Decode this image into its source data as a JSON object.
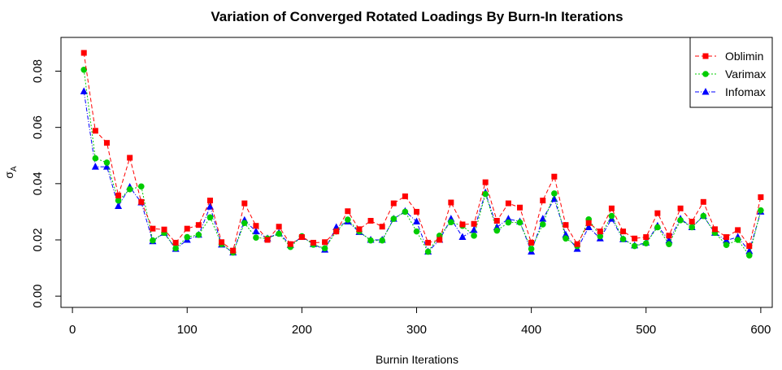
{
  "chart_data": {
    "type": "line",
    "title": "Variation of Converged Rotated Loadings By Burn-In Iterations",
    "xlabel": "Burnin Iterations",
    "ylabel": "σ",
    "ylabel_sub": "A",
    "xlim": [
      -10,
      610
    ],
    "ylim": [
      -0.004,
      0.092
    ],
    "x_ticks": [
      0,
      100,
      200,
      300,
      400,
      500,
      600
    ],
    "y_ticks": [
      0.0,
      0.02,
      0.04,
      0.06,
      0.08
    ],
    "y_tick_labels": [
      "0.00",
      "0.02",
      "0.04",
      "0.06",
      "0.08"
    ],
    "grid": false,
    "legend_position": "top-right",
    "x": [
      10,
      20,
      30,
      40,
      50,
      60,
      70,
      80,
      90,
      100,
      110,
      120,
      130,
      140,
      150,
      160,
      170,
      180,
      190,
      200,
      210,
      220,
      230,
      240,
      250,
      260,
      270,
      280,
      290,
      300,
      310,
      320,
      330,
      340,
      350,
      360,
      370,
      380,
      390,
      400,
      410,
      420,
      430,
      440,
      450,
      460,
      470,
      480,
      490,
      500,
      510,
      520,
      530,
      540,
      550,
      560,
      570,
      580,
      590,
      600
    ],
    "series": [
      {
        "name": "Oblimin",
        "color": "#ff0000",
        "marker": "square",
        "dash": "5,3",
        "values": [
          0.0865,
          0.0588,
          0.0545,
          0.0358,
          0.0492,
          0.0335,
          0.024,
          0.0237,
          0.019,
          0.024,
          0.0253,
          0.034,
          0.0192,
          0.0162,
          0.033,
          0.025,
          0.02,
          0.0247,
          0.0185,
          0.021,
          0.019,
          0.0192,
          0.023,
          0.0302,
          0.0238,
          0.0268,
          0.0247,
          0.033,
          0.0355,
          0.03,
          0.019,
          0.02,
          0.0333,
          0.0255,
          0.0257,
          0.0405,
          0.0268,
          0.033,
          0.0315,
          0.019,
          0.034,
          0.0425,
          0.0253,
          0.0185,
          0.026,
          0.023,
          0.0312,
          0.023,
          0.0205,
          0.021,
          0.0295,
          0.0215,
          0.0312,
          0.0265,
          0.0335,
          0.0238,
          0.021,
          0.0235,
          0.0178,
          0.0352
        ]
      },
      {
        "name": "Varimax",
        "color": "#00cc00",
        "marker": "circle",
        "dash": "2,2",
        "values": [
          0.0805,
          0.049,
          0.0475,
          0.034,
          0.038,
          0.039,
          0.0198,
          0.0225,
          0.017,
          0.021,
          0.0218,
          0.028,
          0.0185,
          0.0155,
          0.026,
          0.0208,
          0.0205,
          0.0222,
          0.0175,
          0.0213,
          0.0183,
          0.017,
          0.023,
          0.0272,
          0.023,
          0.0198,
          0.0198,
          0.0275,
          0.03,
          0.023,
          0.0158,
          0.0215,
          0.0263,
          0.025,
          0.0215,
          0.0363,
          0.0233,
          0.0262,
          0.0262,
          0.0168,
          0.0255,
          0.0365,
          0.0205,
          0.0178,
          0.0273,
          0.0213,
          0.0285,
          0.0203,
          0.0178,
          0.0188,
          0.0245,
          0.0185,
          0.027,
          0.0245,
          0.0285,
          0.0225,
          0.0182,
          0.02,
          0.0145,
          0.0305
        ]
      },
      {
        "name": "Infomax",
        "color": "#0000ff",
        "marker": "triangle",
        "dash": "5,2,1,2",
        "values": [
          0.0728,
          0.046,
          0.046,
          0.032,
          0.0388,
          0.0333,
          0.0195,
          0.0225,
          0.0168,
          0.02,
          0.0218,
          0.0318,
          0.0183,
          0.0155,
          0.027,
          0.023,
          0.0205,
          0.0225,
          0.0182,
          0.021,
          0.0185,
          0.0165,
          0.0245,
          0.0265,
          0.0228,
          0.02,
          0.02,
          0.0275,
          0.0302,
          0.0265,
          0.0158,
          0.02,
          0.0275,
          0.021,
          0.0235,
          0.0368,
          0.0245,
          0.0275,
          0.0265,
          0.0158,
          0.0275,
          0.0345,
          0.0218,
          0.0168,
          0.0245,
          0.0205,
          0.0275,
          0.0202,
          0.018,
          0.019,
          0.025,
          0.0198,
          0.0275,
          0.0245,
          0.0285,
          0.0225,
          0.0198,
          0.021,
          0.016,
          0.03
        ]
      }
    ]
  }
}
